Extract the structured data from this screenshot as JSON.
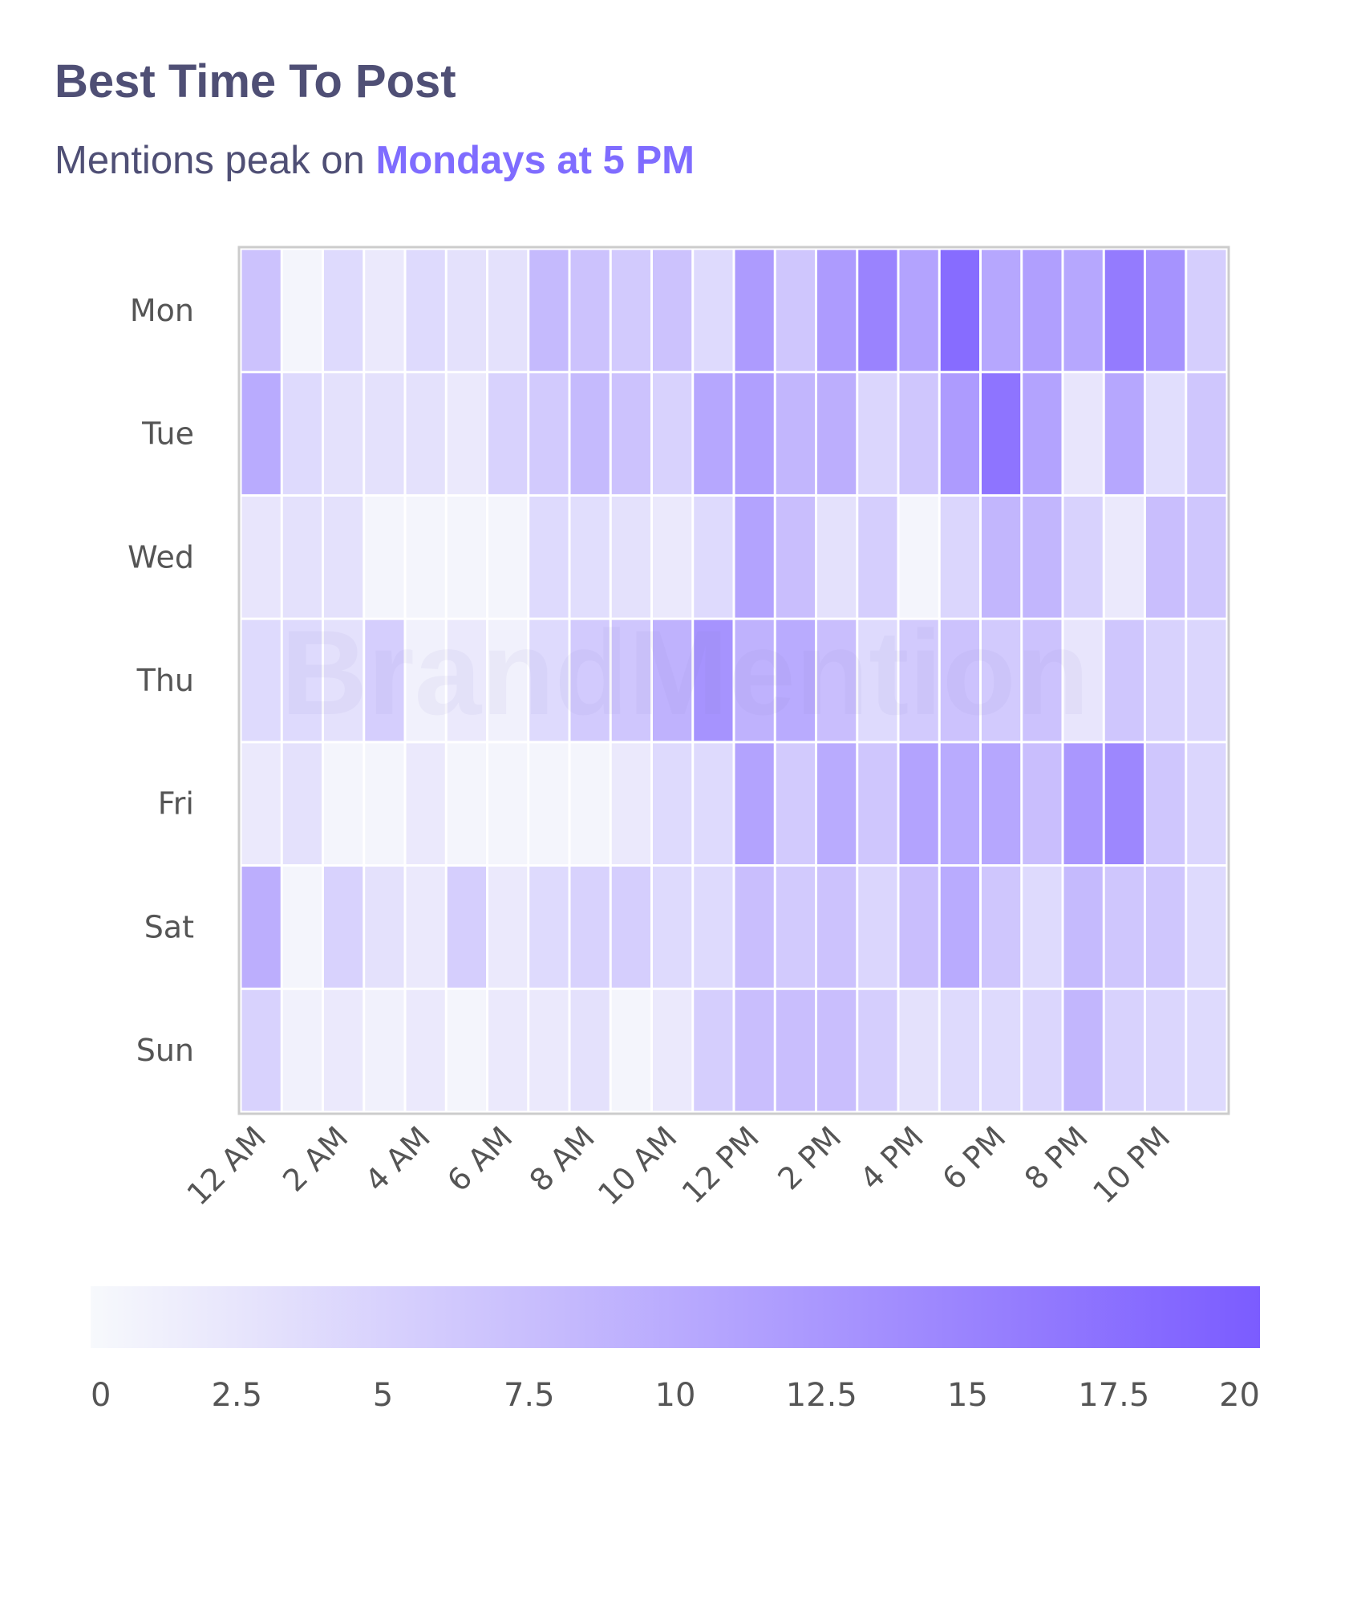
{
  "header": {
    "title": "Best Time To Post",
    "subtitle_prefix": "Mentions peak on",
    "subtitle_highlight": "Mondays at 5 PM"
  },
  "watermark": "BrandMention",
  "colors": {
    "low": "#f7f9fc",
    "high": "#7b5cff",
    "title": "#4f4f75",
    "accent": "#7f6cff"
  },
  "chart_data": {
    "type": "heatmap",
    "title": "Best Time To Post",
    "rows": [
      "Mon",
      "Tue",
      "Wed",
      "Thu",
      "Fri",
      "Sat",
      "Sun"
    ],
    "columns": [
      "12 AM",
      "1 AM",
      "2 AM",
      "3 AM",
      "4 AM",
      "5 AM",
      "6 AM",
      "7 AM",
      "8 AM",
      "9 AM",
      "10 AM",
      "11 AM",
      "12 PM",
      "1 PM",
      "2 PM",
      "3 PM",
      "4 PM",
      "5 PM",
      "6 PM",
      "7 PM",
      "8 PM",
      "9 PM",
      "10 PM",
      "11 PM"
    ],
    "x_tick_labels": [
      "12 AM",
      "2 AM",
      "4 AM",
      "6 AM",
      "8 AM",
      "10 AM",
      "12 PM",
      "2 PM",
      "4 PM",
      "6 PM",
      "8 PM",
      "10 PM"
    ],
    "values": [
      [
        7,
        0.5,
        4,
        2,
        4,
        3,
        3,
        8,
        7,
        6,
        7,
        4,
        12,
        6.5,
        12,
        15,
        11,
        18,
        10.5,
        11.5,
        10.5,
        16,
        13,
        5.5
      ],
      [
        10,
        4,
        3,
        3,
        3,
        2,
        5,
        6,
        8,
        7,
        5,
        10.5,
        11.5,
        8.5,
        9.5,
        4.5,
        6.5,
        12,
        17,
        11,
        2.5,
        10.5,
        3.5,
        6.5
      ],
      [
        2.5,
        3,
        3,
        0.5,
        0.5,
        0.5,
        0.5,
        4,
        3.5,
        3,
        2,
        4,
        11,
        7.5,
        3,
        5.5,
        0.5,
        4.5,
        8.5,
        8.5,
        5,
        2,
        7.5,
        6.5
      ],
      [
        4,
        4,
        3,
        5.5,
        1,
        2,
        1,
        4,
        6,
        6.5,
        9,
        13,
        9,
        10,
        7.5,
        4,
        6,
        7,
        6,
        7,
        2.5,
        6.5,
        5,
        4.5
      ],
      [
        2,
        3,
        0.5,
        0.5,
        2,
        0.5,
        0.5,
        0.5,
        0.5,
        2,
        4,
        4,
        11,
        6,
        10,
        6.5,
        11,
        10,
        10.5,
        7.5,
        12.5,
        14.5,
        6.5,
        4.5
      ],
      [
        9.5,
        0.5,
        5,
        3,
        2,
        5.5,
        2,
        4,
        5,
        5.5,
        4,
        4,
        7.5,
        6,
        7,
        4.5,
        7.5,
        10,
        6.5,
        4,
        8,
        6.5,
        6.5,
        4
      ],
      [
        5,
        1,
        2,
        1,
        2,
        0.5,
        2,
        2,
        3,
        0.5,
        2,
        5.5,
        7.5,
        7.5,
        7.5,
        5.5,
        3,
        4,
        4,
        4.5,
        8.5,
        5,
        4.5,
        4
      ]
    ],
    "colorbar": {
      "range": [
        0,
        20
      ],
      "ticks": [
        "0",
        "2.5",
        "5",
        "7.5",
        "10",
        "12.5",
        "15",
        "17.5",
        "20"
      ]
    }
  }
}
